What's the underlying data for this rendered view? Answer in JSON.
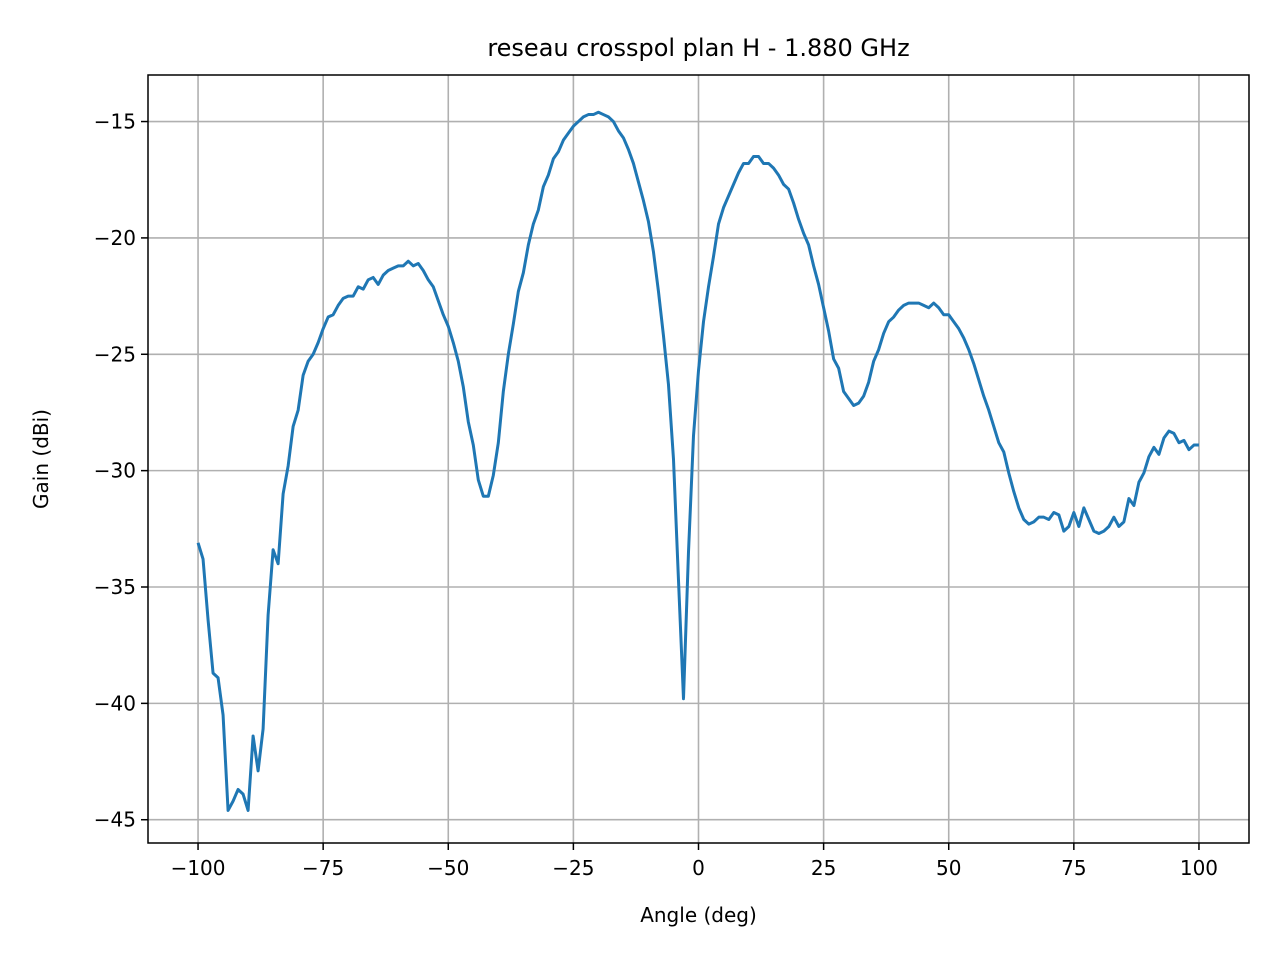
{
  "chart_data": {
    "type": "line",
    "title": "reseau crosspol plan H - 1.880 GHz",
    "xlabel": "Angle (deg)",
    "ylabel": "Gain (dBi)",
    "xlim": [
      -110,
      110
    ],
    "ylim": [
      -46,
      -13
    ],
    "xticks": [
      -100,
      -75,
      -50,
      -25,
      0,
      25,
      50,
      75,
      100
    ],
    "xtick_labels": [
      "−100",
      "−75",
      "−50",
      "−25",
      "0",
      "25",
      "50",
      "75",
      "100"
    ],
    "yticks": [
      -15,
      -20,
      -25,
      -30,
      -35,
      -40,
      -45
    ],
    "ytick_labels": [
      "−15",
      "−20",
      "−25",
      "−30",
      "−35",
      "−40",
      "−45"
    ],
    "grid": true,
    "line_color": "#1f77b4",
    "series": [
      {
        "x": [
          -100,
          -99,
          -98,
          -97,
          -96,
          -95,
          -94,
          -93,
          -92,
          -91,
          -90,
          -89,
          -88,
          -87,
          -86,
          -85,
          -84,
          -83,
          -82,
          -81,
          -80,
          -79,
          -78,
          -77,
          -76,
          -75,
          -74,
          -73,
          -72,
          -71,
          -70,
          -69,
          -68,
          -67,
          -66,
          -65,
          -64,
          -63,
          -62,
          -61,
          -60,
          -59,
          -58,
          -57,
          -56,
          -55,
          -54,
          -53,
          -52,
          -51,
          -50,
          -49,
          -48,
          -47,
          -46,
          -45,
          -44,
          -43,
          -42,
          -41,
          -40,
          -39,
          -38,
          -37,
          -36,
          -35,
          -34,
          -33,
          -32,
          -31,
          -30,
          -29,
          -28,
          -27,
          -26,
          -25,
          -24,
          -23,
          -22,
          -21,
          -20,
          -19,
          -18,
          -17,
          -16,
          -15,
          -14,
          -13,
          -12,
          -11,
          -10,
          -9,
          -8,
          -7,
          -6,
          -5,
          -4,
          -3,
          -2,
          -1,
          0,
          1,
          2,
          3,
          4,
          5,
          6,
          7,
          8,
          9,
          10,
          11,
          12,
          13,
          14,
          15,
          16,
          17,
          18,
          19,
          20,
          21,
          22,
          23,
          24,
          25,
          26,
          27,
          28,
          29,
          30,
          31,
          32,
          33,
          34,
          35,
          36,
          37,
          38,
          39,
          40,
          41,
          42,
          43,
          44,
          45,
          46,
          47,
          48,
          49,
          50,
          51,
          52,
          53,
          54,
          55,
          56,
          57,
          58,
          59,
          60,
          61,
          62,
          63,
          64,
          65,
          66,
          67,
          68,
          69,
          70,
          71,
          72,
          73,
          74,
          75,
          76,
          77,
          78,
          79,
          80,
          81,
          82,
          83,
          84,
          85,
          86,
          87,
          88,
          89,
          90,
          91,
          92,
          93,
          94,
          95,
          96,
          97,
          98,
          99,
          100
        ],
        "values": [
          -33.1,
          -33.8,
          -36.4,
          -38.7,
          -38.9,
          -40.5,
          -44.6,
          -44.2,
          -43.7,
          -43.9,
          -44.6,
          -41.4,
          -42.9,
          -41.1,
          -36.2,
          -33.4,
          -34.0,
          -31.0,
          -29.8,
          -28.1,
          -27.4,
          -25.9,
          -25.3,
          -25.0,
          -24.5,
          -23.9,
          -23.4,
          -23.3,
          -22.9,
          -22.6,
          -22.5,
          -22.5,
          -22.1,
          -22.2,
          -21.8,
          -21.7,
          -22.0,
          -21.6,
          -21.4,
          -21.3,
          -21.2,
          -21.2,
          -21.0,
          -21.2,
          -21.1,
          -21.4,
          -21.8,
          -22.1,
          -22.7,
          -23.3,
          -23.8,
          -24.5,
          -25.3,
          -26.4,
          -27.9,
          -28.9,
          -30.4,
          -31.1,
          -31.1,
          -30.2,
          -28.8,
          -26.6,
          -25.0,
          -23.7,
          -22.3,
          -21.5,
          -20.3,
          -19.4,
          -18.8,
          -17.8,
          -17.3,
          -16.6,
          -16.3,
          -15.8,
          -15.5,
          -15.2,
          -15.0,
          -14.8,
          -14.7,
          -14.7,
          -14.6,
          -14.7,
          -14.8,
          -15.0,
          -15.4,
          -15.7,
          -16.2,
          -16.8,
          -17.6,
          -18.4,
          -19.3,
          -20.6,
          -22.3,
          -24.2,
          -26.3,
          -29.5,
          -34.7,
          -39.8,
          -33.5,
          -28.5,
          -25.7,
          -23.6,
          -22.1,
          -20.8,
          -19.4,
          -18.7,
          -18.2,
          -17.7,
          -17.2,
          -16.8,
          -16.8,
          -16.5,
          -16.5,
          -16.8,
          -16.8,
          -17.0,
          -17.3,
          -17.7,
          -17.9,
          -18.5,
          -19.2,
          -19.8,
          -20.3,
          -21.2,
          -22.0,
          -23.0,
          -24.0,
          -25.2,
          -25.6,
          -26.6,
          -26.9,
          -27.2,
          -27.1,
          -26.8,
          -26.2,
          -25.3,
          -24.8,
          -24.1,
          -23.6,
          -23.4,
          -23.1,
          -22.9,
          -22.8,
          -22.8,
          -22.8,
          -22.9,
          -23.0,
          -22.8,
          -23.0,
          -23.3,
          -23.3,
          -23.6,
          -23.9,
          -24.3,
          -24.8,
          -25.4,
          -26.1,
          -26.8,
          -27.4,
          -28.1,
          -28.8,
          -29.2,
          -30.1,
          -30.9,
          -31.6,
          -32.1,
          -32.3,
          -32.2,
          -32.0,
          -32.0,
          -32.1,
          -31.8,
          -31.9,
          -32.6,
          -32.4,
          -31.8,
          -32.4,
          -31.6,
          -32.1,
          -32.6,
          -32.7,
          -32.6,
          -32.4,
          -32.0,
          -32.4,
          -32.2,
          -31.2,
          -31.5,
          -30.5,
          -30.1,
          -29.4,
          -29.0,
          -29.3,
          -28.6,
          -28.3,
          -28.4,
          -28.8,
          -28.7,
          -29.1,
          -28.9,
          -28.9
        ]
      }
    ]
  }
}
